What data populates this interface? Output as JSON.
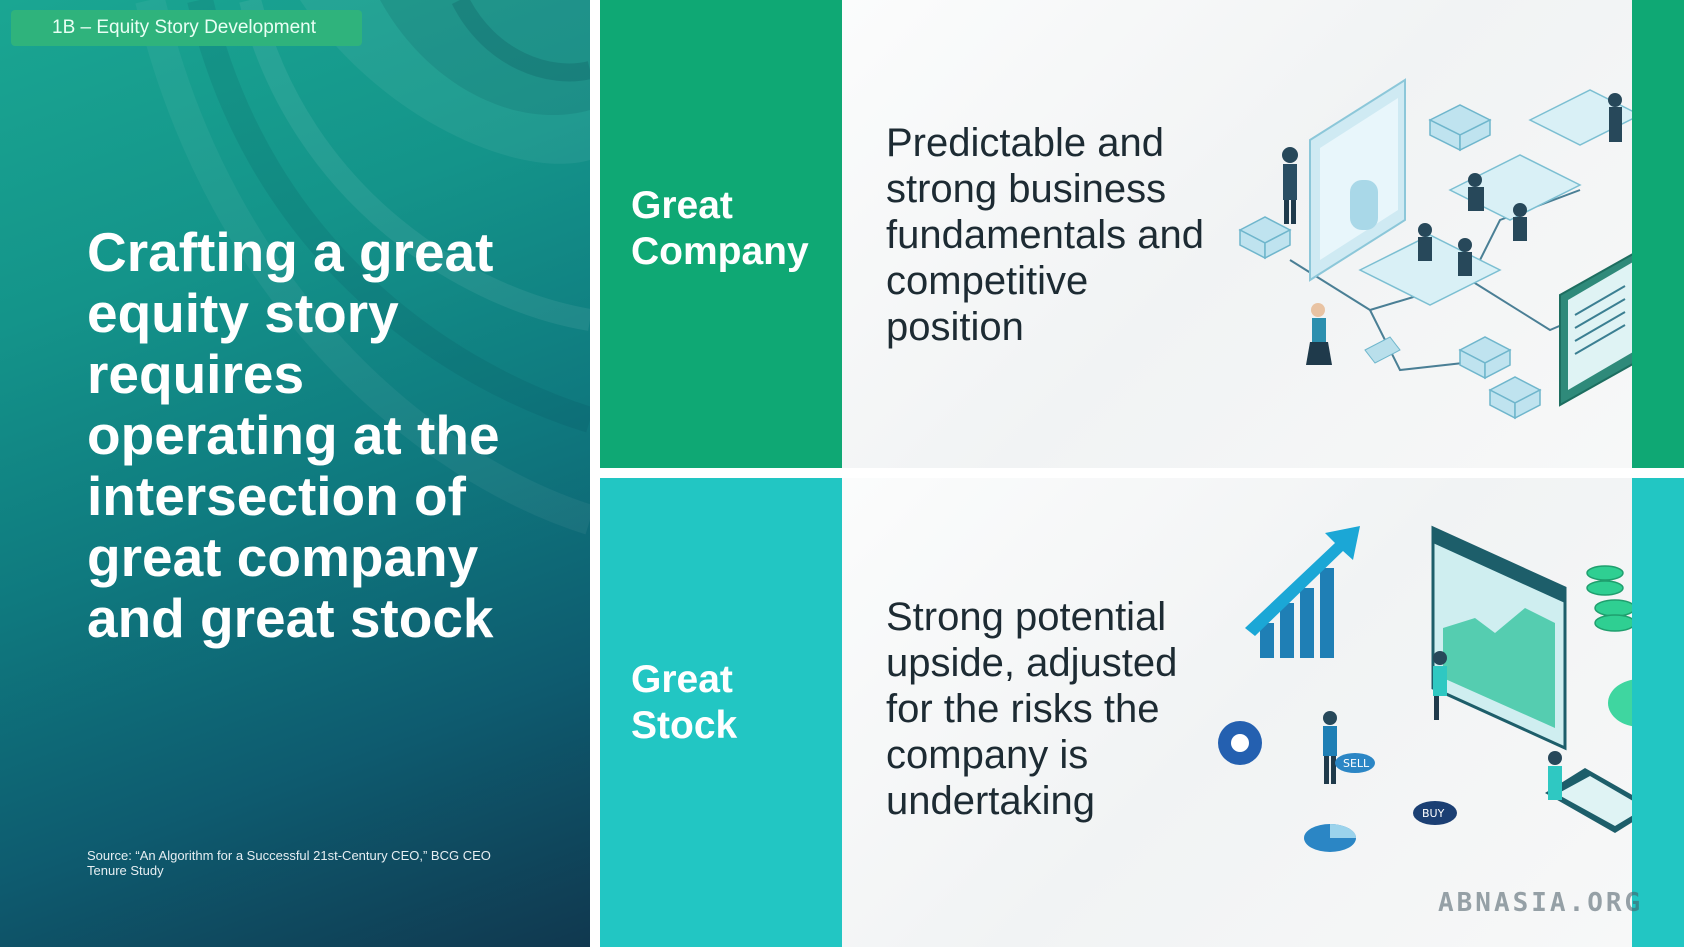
{
  "section_label": "1B – Equity Story Development",
  "headline": "Crafting a great equity story requires operating at the intersection of great company and great stock",
  "source_note": "Source: “An Algorithm for a Successful 21st-Century CEO,” BCG CEO Tenure Study",
  "rows": [
    {
      "label_line1": "Great",
      "label_line2": "Company",
      "description": "Predictable and strong business fundamentals and competitive position",
      "accent_color": "#0fa874",
      "illustration_icon": "isometric-office-team-icon"
    },
    {
      "label_line1": "Great",
      "label_line2": "Stock",
      "description": "Strong potential upside, adjusted for the risks the company is undertaking",
      "accent_color": "#22c6c3",
      "illustration_icon": "isometric-stock-trading-icon",
      "sell_badge": "SELL",
      "buy_badge": "BUY"
    }
  ],
  "watermark": "ABNASIA.ORG",
  "colors": {
    "chip": "#2fb37c",
    "text_dark": "#1d2b33",
    "panel_top": "#1aa692",
    "panel_bottom": "#10384f"
  }
}
